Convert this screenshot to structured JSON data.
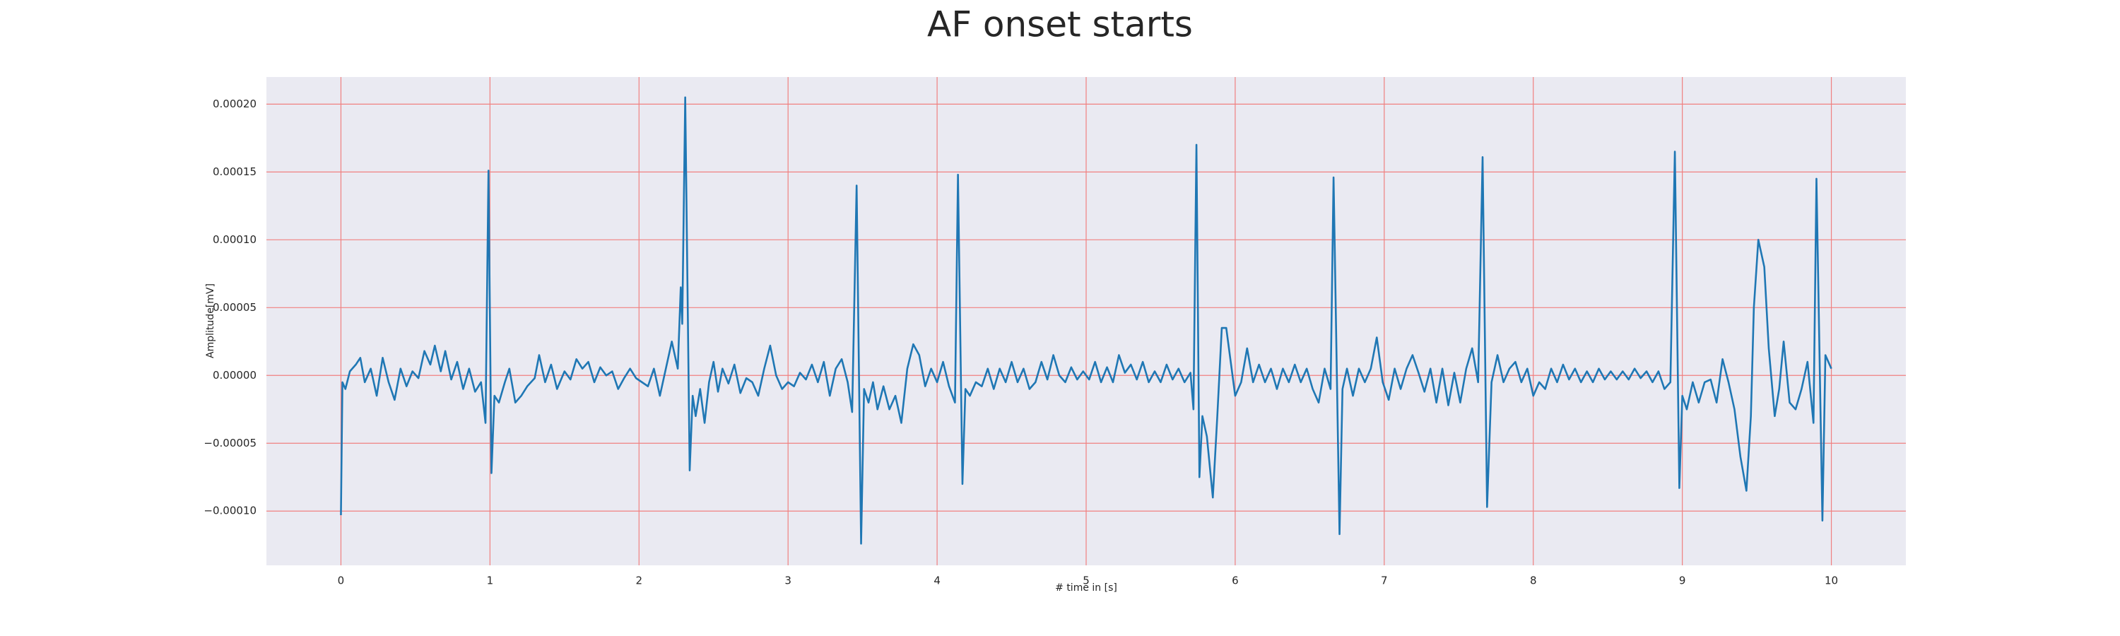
{
  "chart_data": {
    "type": "line",
    "title": "AF onset starts",
    "xlabel": "# time in [s]",
    "ylabel": "Amplitude[mV]",
    "color": "#1f77b4",
    "grid": true,
    "grid_color": "#f08080",
    "background": "#eaeaf2",
    "xlim": [
      -0.5,
      10.5
    ],
    "xticks": [
      0,
      1,
      2,
      3,
      4,
      5,
      6,
      7,
      8,
      9,
      10
    ],
    "ylim": [
      -0.00014,
      0.00022
    ],
    "yticks": [
      {
        "value": -0.0001,
        "label": "−0.00010"
      },
      {
        "value": -5e-05,
        "label": "−0.00005"
      },
      {
        "value": 0,
        "label": "0.00000"
      },
      {
        "value": 5e-05,
        "label": "0.00005"
      },
      {
        "value": 0.0001,
        "label": "0.00010"
      },
      {
        "value": 0.00015,
        "label": "0.00015"
      },
      {
        "value": 0.0002,
        "label": "0.00020"
      }
    ],
    "x": [
      0,
      0.01,
      0.03,
      0.06,
      0.1,
      0.13,
      0.16,
      0.2,
      0.24,
      0.28,
      0.32,
      0.36,
      0.4,
      0.44,
      0.48,
      0.52,
      0.56,
      0.6,
      0.63,
      0.67,
      0.7,
      0.74,
      0.78,
      0.82,
      0.86,
      0.9,
      0.94,
      0.97,
      0.99,
      1.01,
      1.03,
      1.06,
      1.1,
      1.13,
      1.17,
      1.21,
      1.25,
      1.3,
      1.33,
      1.37,
      1.41,
      1.45,
      1.5,
      1.54,
      1.58,
      1.62,
      1.66,
      1.7,
      1.74,
      1.78,
      1.82,
      1.86,
      1.9,
      1.94,
      1.98,
      2.02,
      2.06,
      2.1,
      2.14,
      2.18,
      2.22,
      2.26,
      2.28,
      2.29,
      2.31,
      2.34,
      2.36,
      2.38,
      2.41,
      2.44,
      2.47,
      2.5,
      2.53,
      2.56,
      2.6,
      2.64,
      2.68,
      2.72,
      2.76,
      2.8,
      2.84,
      2.88,
      2.92,
      2.96,
      3.0,
      3.04,
      3.08,
      3.12,
      3.16,
      3.2,
      3.24,
      3.28,
      3.32,
      3.36,
      3.4,
      3.43,
      3.46,
      3.49,
      3.51,
      3.54,
      3.57,
      3.6,
      3.64,
      3.68,
      3.72,
      3.76,
      3.8,
      3.84,
      3.88,
      3.92,
      3.96,
      4.0,
      4.04,
      4.08,
      4.12,
      4.14,
      4.17,
      4.19,
      4.22,
      4.26,
      4.3,
      4.34,
      4.38,
      4.42,
      4.46,
      4.5,
      4.54,
      4.58,
      4.62,
      4.66,
      4.7,
      4.74,
      4.78,
      4.82,
      4.86,
      4.9,
      4.94,
      4.98,
      5.02,
      5.06,
      5.1,
      5.14,
      5.18,
      5.22,
      5.26,
      5.3,
      5.34,
      5.38,
      5.42,
      5.46,
      5.5,
      5.54,
      5.58,
      5.62,
      5.66,
      5.7,
      5.72,
      5.74,
      5.76,
      5.78,
      5.81,
      5.85,
      5.88,
      5.91,
      5.94,
      5.97,
      6.0,
      6.04,
      6.08,
      6.12,
      6.16,
      6.2,
      6.24,
      6.28,
      6.32,
      6.36,
      6.4,
      6.44,
      6.48,
      6.52,
      6.56,
      6.6,
      6.64,
      6.66,
      6.7,
      6.72,
      6.75,
      6.79,
      6.83,
      6.87,
      6.91,
      6.95,
      6.99,
      7.03,
      7.07,
      7.11,
      7.15,
      7.19,
      7.23,
      7.27,
      7.31,
      7.35,
      7.39,
      7.43,
      7.47,
      7.51,
      7.55,
      7.59,
      7.63,
      7.66,
      7.69,
      7.72,
      7.76,
      7.8,
      7.84,
      7.88,
      7.92,
      7.96,
      8.0,
      8.04,
      8.08,
      8.12,
      8.16,
      8.2,
      8.24,
      8.28,
      8.32,
      8.36,
      8.4,
      8.44,
      8.48,
      8.52,
      8.56,
      8.6,
      8.64,
      8.68,
      8.72,
      8.76,
      8.8,
      8.84,
      8.88,
      8.92,
      8.95,
      8.98,
      9.0,
      9.03,
      9.07,
      9.11,
      9.15,
      9.19,
      9.23,
      9.27,
      9.31,
      9.35,
      9.39,
      9.43,
      9.46,
      9.48,
      9.51,
      9.55,
      9.58,
      9.62,
      9.65,
      9.68,
      9.72,
      9.76,
      9.8,
      9.84,
      9.88,
      9.9,
      9.94,
      9.96,
      10.0
    ],
    "values": [
      -0.000103,
      -5e-06,
      -1e-05,
      3e-06,
      8e-06,
      1.3e-05,
      -5e-06,
      5e-06,
      -1.5e-05,
      1.3e-05,
      -5e-06,
      -1.8e-05,
      5e-06,
      -8e-06,
      3e-06,
      -2e-06,
      1.8e-05,
      8e-06,
      2.2e-05,
      3e-06,
      1.8e-05,
      -3e-06,
      1e-05,
      -1e-05,
      5e-06,
      -1.2e-05,
      -5e-06,
      -3.5e-05,
      0.000151,
      -7.2e-05,
      -1.5e-05,
      -2e-05,
      -5e-06,
      5e-06,
      -2e-05,
      -1.5e-05,
      -8e-06,
      -2e-06,
      1.5e-05,
      -5e-06,
      8e-06,
      -1e-05,
      3e-06,
      -3e-06,
      1.2e-05,
      5e-06,
      1e-05,
      -5e-06,
      6e-06,
      0,
      3e-06,
      -1e-05,
      -2e-06,
      5e-06,
      -2e-06,
      -5e-06,
      -8e-06,
      5e-06,
      -1.5e-05,
      5e-06,
      2.5e-05,
      5e-06,
      6.5e-05,
      3.8e-05,
      0.000205,
      -7e-05,
      -1.5e-05,
      -3e-05,
      -1e-05,
      -3.5e-05,
      -5e-06,
      1e-05,
      -1.2e-05,
      5e-06,
      -6e-06,
      8e-06,
      -1.3e-05,
      -2e-06,
      -5e-06,
      -1.5e-05,
      5e-06,
      2.2e-05,
      0,
      -1e-05,
      -5e-06,
      -8e-06,
      2e-06,
      -3e-06,
      8e-06,
      -5e-06,
      1e-05,
      -1.5e-05,
      5e-06,
      1.2e-05,
      -5e-06,
      -2.7e-05,
      0.00014,
      -0.000124,
      -1e-05,
      -2e-05,
      -5e-06,
      -2.5e-05,
      -8e-06,
      -2.5e-05,
      -1.5e-05,
      -3.5e-05,
      5e-06,
      2.3e-05,
      1.5e-05,
      -8e-06,
      5e-06,
      -5e-06,
      1e-05,
      -8e-06,
      -2e-05,
      0.000148,
      -8e-05,
      -1e-05,
      -1.5e-05,
      -5e-06,
      -8e-06,
      5e-06,
      -1e-05,
      5e-06,
      -5e-06,
      1e-05,
      -5e-06,
      5e-06,
      -1e-05,
      -5e-06,
      1e-05,
      -3e-06,
      1.5e-05,
      0,
      -5e-06,
      6e-06,
      -3e-06,
      3e-06,
      -3e-06,
      1e-05,
      -5e-06,
      6e-06,
      -5e-06,
      1.5e-05,
      2e-06,
      8e-06,
      -3e-06,
      1e-05,
      -5e-06,
      3e-06,
      -5e-06,
      8e-06,
      -3e-06,
      5e-06,
      -5e-06,
      2e-06,
      -2.5e-05,
      0.00017,
      -7.5e-05,
      -3e-05,
      -4.5e-05,
      -9e-05,
      -3e-05,
      3.5e-05,
      3.5e-05,
      1e-05,
      -1.5e-05,
      -5e-06,
      2e-05,
      -5e-06,
      8e-06,
      -5e-06,
      5e-06,
      -1e-05,
      5e-06,
      -5e-06,
      8e-06,
      -5e-06,
      5e-06,
      -1e-05,
      -2e-05,
      5e-06,
      -1e-05,
      0.000146,
      -0.000117,
      -1e-05,
      5e-06,
      -1.5e-05,
      5e-06,
      -5e-06,
      5e-06,
      2.8e-05,
      -5e-06,
      -1.8e-05,
      5e-06,
      -1e-05,
      5e-06,
      1.5e-05,
      2e-06,
      -1.2e-05,
      5e-06,
      -2e-05,
      5e-06,
      -2.2e-05,
      2e-06,
      -2e-05,
      5e-06,
      2e-05,
      -5e-06,
      0.000161,
      -9.7e-05,
      -5e-06,
      1.5e-05,
      -5e-06,
      5e-06,
      1e-05,
      -5e-06,
      5e-06,
      -1.5e-05,
      -5e-06,
      -1e-05,
      5e-06,
      -5e-06,
      8e-06,
      -3e-06,
      5e-06,
      -5e-06,
      3e-06,
      -5e-06,
      5e-06,
      -3e-06,
      3e-06,
      -3e-06,
      3e-06,
      -3e-06,
      5e-06,
      -2e-06,
      3e-06,
      -5e-06,
      3e-06,
      -1e-05,
      -5e-06,
      0.000165,
      -8.3e-05,
      -1.5e-05,
      -2.5e-05,
      -5e-06,
      -2e-05,
      -5e-06,
      -3e-06,
      -2e-05,
      1.2e-05,
      -5e-06,
      -2.5e-05,
      -6e-05,
      -8.5e-05,
      -3e-05,
      5e-05,
      0.0001,
      8e-05,
      2e-05,
      -3e-05,
      -1e-05,
      2.5e-05,
      -2e-05,
      -2.5e-05,
      -1e-05,
      1e-05,
      -3.5e-05,
      0.000145,
      -0.000107,
      1.5e-05,
      5e-06
    ]
  }
}
